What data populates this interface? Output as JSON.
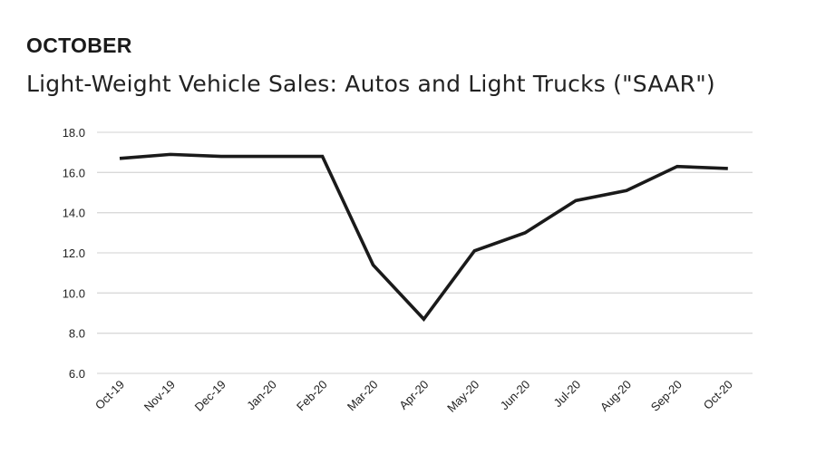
{
  "header": {
    "kicker": "OCTOBER",
    "title": "Light-Weight Vehicle Sales: Autos and Light Trucks (\"SAAR\")"
  },
  "chart_data": {
    "type": "line",
    "title": "Light-Weight Vehicle Sales: Autos and Light Trucks (\"SAAR\")",
    "xlabel": "",
    "ylabel": "",
    "categories": [
      "Oct-19",
      "Nov-19",
      "Dec-19",
      "Jan-20",
      "Feb-20",
      "Mar-20",
      "Apr-20",
      "May-20",
      "Jun-20",
      "Jul-20",
      "Aug-20",
      "Sep-20",
      "Oct-20"
    ],
    "series": [
      {
        "name": "SAAR",
        "values": [
          16.7,
          16.9,
          16.8,
          16.8,
          16.8,
          11.4,
          8.7,
          12.1,
          13.0,
          14.6,
          15.1,
          16.3,
          16.2
        ],
        "color": "#1a1a1a"
      }
    ],
    "ylim": [
      6.0,
      18.0
    ],
    "yticks": [
      "6.0",
      "8.0",
      "10.0",
      "12.0",
      "14.0",
      "16.0",
      "18.0"
    ],
    "grid": true,
    "legend": "none"
  }
}
